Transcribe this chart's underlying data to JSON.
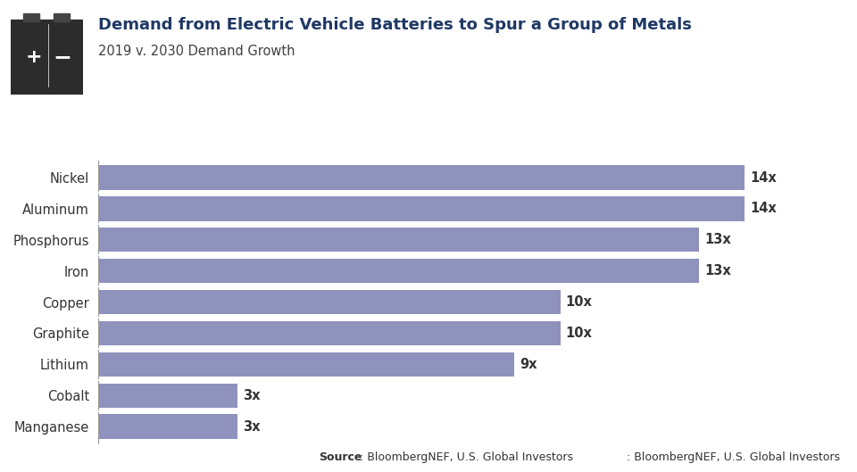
{
  "title": "Demand from Electric Vehicle Batteries to Spur a Group of Metals",
  "subtitle": "2019 v. 2030 Demand Growth",
  "categories": [
    "Manganese",
    "Cobalt",
    "Lithium",
    "Graphite",
    "Copper",
    "Iron",
    "Phosphorus",
    "Aluminum",
    "Nickel"
  ],
  "values": [
    3,
    3,
    9,
    10,
    10,
    13,
    13,
    14,
    14
  ],
  "labels": [
    "3x",
    "3x",
    "9x",
    "10x",
    "10x",
    "13x",
    "13x",
    "14x",
    "14x"
  ],
  "bar_color": "#8E92BC",
  "background_color": "#FFFFFF",
  "title_color": "#1F3864",
  "subtitle_color": "#404040",
  "label_color": "#333333",
  "source_prefix": "Source",
  "source_text": ": BloombergNEF, U.S. Global Investors",
  "xlim_max": 15.5,
  "bar_height": 0.78,
  "label_fontsize": 10.5,
  "title_fontsize": 13,
  "subtitle_fontsize": 10.5,
  "source_fontsize": 9,
  "ytick_fontsize": 10.5,
  "icon_color": "#2C2C2C",
  "divider_color": "#BBBBBB",
  "left_spine_color": "#999999"
}
